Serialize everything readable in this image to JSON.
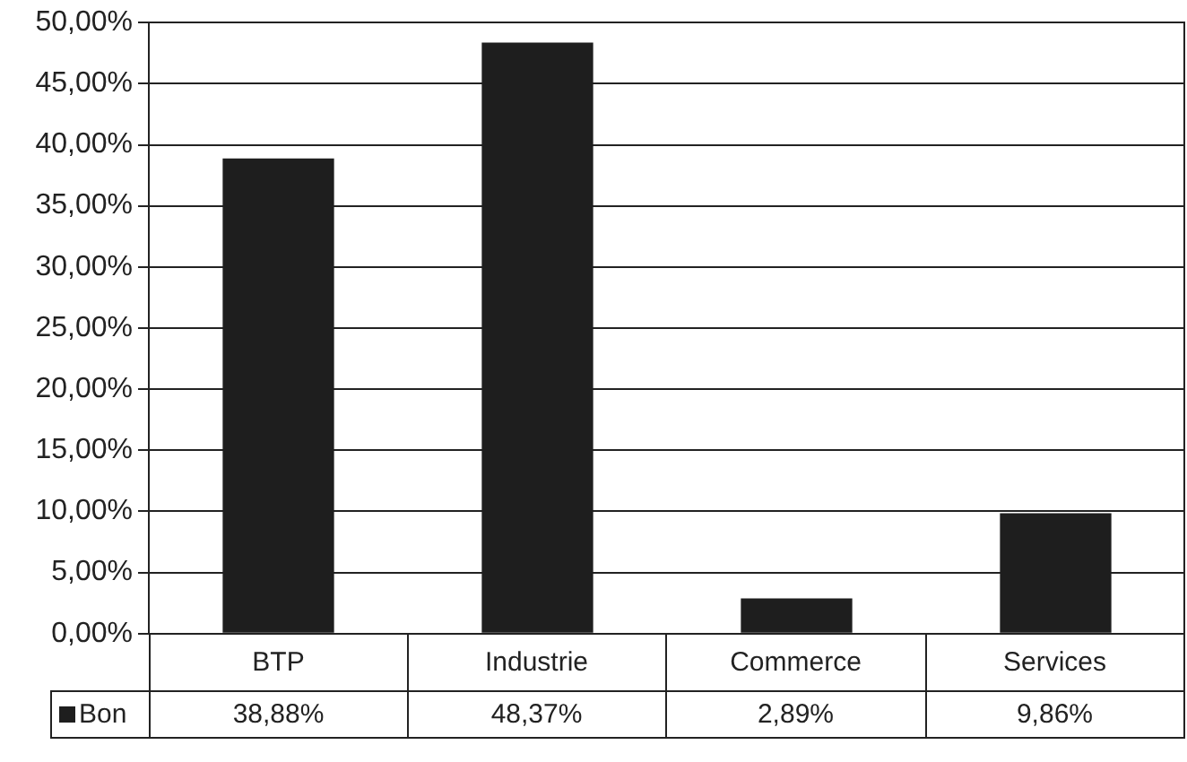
{
  "chart_data": {
    "type": "bar",
    "categories": [
      "BTP",
      "Industrie",
      "Commerce",
      "Services"
    ],
    "series": [
      {
        "name": "Bon",
        "color": "#1e1e1e",
        "values": [
          38.88,
          48.37,
          2.89,
          9.86
        ],
        "value_labels": [
          "38,88%",
          "48,37%",
          "2,89%",
          "9,86%"
        ]
      }
    ],
    "ylim": [
      0,
      50
    ],
    "yticks": [
      {
        "value": 0,
        "label": "0,00%"
      },
      {
        "value": 5,
        "label": "5,00%"
      },
      {
        "value": 10,
        "label": "10,00%"
      },
      {
        "value": 15,
        "label": "15,00%"
      },
      {
        "value": 20,
        "label": "20,00%"
      },
      {
        "value": 25,
        "label": "25,00%"
      },
      {
        "value": 30,
        "label": "30,00%"
      },
      {
        "value": 35,
        "label": "35,00%"
      },
      {
        "value": 40,
        "label": "40,00%"
      },
      {
        "value": 45,
        "label": "45,00%"
      },
      {
        "value": 50,
        "label": "50,00%"
      }
    ],
    "grid": "y",
    "legend": "bottom"
  }
}
